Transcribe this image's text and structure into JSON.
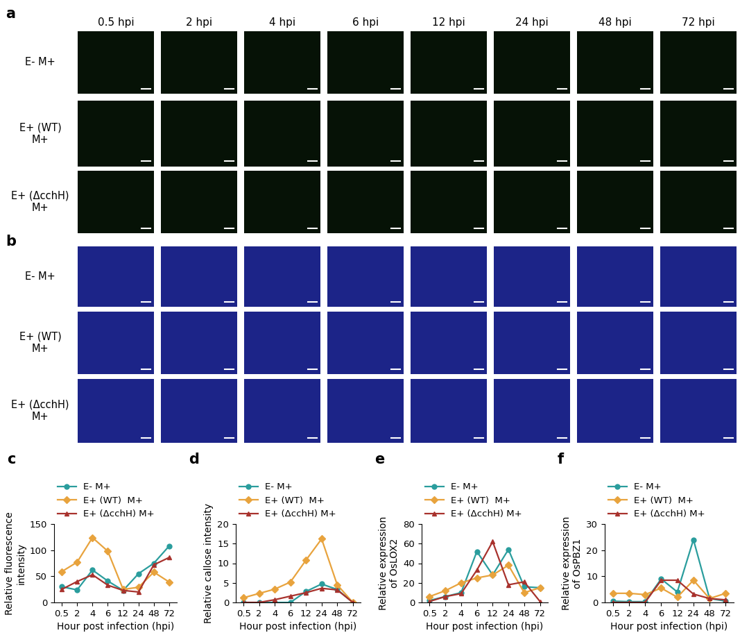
{
  "image_panels": [
    {
      "label": "a",
      "columns": [
        "0.5 hpi",
        "2 hpi",
        "4 hpi",
        "6 hpi",
        "12 hpi",
        "24 hpi",
        "48 hpi",
        "72 hpi"
      ],
      "rows": [
        "E- M+",
        "E+ (WT)\nM+",
        "E+ (ΔcchH)\nM+"
      ]
    },
    {
      "label": "b",
      "rows": [
        "E- M+",
        "E+ (WT)\nM+",
        "E+ (ΔcchH)\nM+"
      ]
    }
  ],
  "chart_data": [
    {
      "panel": "c",
      "type": "line",
      "x_label": "Hour post infection (hpi)",
      "y_label": "Relative fluorescence\nintensity",
      "categories": [
        "0.5",
        "2",
        "4",
        "6",
        "12",
        "24",
        "48",
        "72"
      ],
      "ylim": [
        0,
        150
      ],
      "yticks": [
        0,
        50,
        100,
        150
      ],
      "legend": "top",
      "series": [
        {
          "name": "E- M+",
          "color": "#2a9d9d",
          "marker": "circle",
          "values": [
            30,
            24,
            62,
            41,
            23,
            55,
            75,
            108
          ]
        },
        {
          "name": "E+ (WT)  M+",
          "color": "#e8a33d",
          "marker": "diamond",
          "values": [
            59,
            77,
            124,
            98,
            25,
            29,
            58,
            39
          ]
        },
        {
          "name": "E+ (ΔcchH) M+",
          "color": "#a8322d",
          "marker": "triangle",
          "values": [
            25,
            40,
            53,
            33,
            23,
            20,
            72,
            86
          ]
        }
      ]
    },
    {
      "panel": "d",
      "type": "line",
      "x_label": "Hour post infection (hpi)",
      "y_label": "Relative callose intensity",
      "categories": [
        "0.5",
        "2",
        "4",
        "6",
        "12",
        "24",
        "48",
        "72"
      ],
      "ylim": [
        0,
        20
      ],
      "yticks": [
        0,
        5,
        10,
        15,
        20
      ],
      "legend": "top",
      "series": [
        {
          "name": "E- M+",
          "color": "#2a9d9d",
          "marker": "circle",
          "values": [
            0,
            0,
            0,
            0,
            2.8,
            4.7,
            3.3,
            0
          ]
        },
        {
          "name": "E+ (WT)  M+",
          "color": "#e8a33d",
          "marker": "diamond",
          "values": [
            1.2,
            2.3,
            3.4,
            5.2,
            10.8,
            16.2,
            4.5,
            0
          ]
        },
        {
          "name": "E+ (ΔcchH) M+",
          "color": "#a8322d",
          "marker": "triangle",
          "values": [
            0,
            0,
            0.7,
            1.6,
            2.5,
            3.6,
            3.2,
            0
          ]
        }
      ]
    },
    {
      "panel": "e",
      "type": "line",
      "x_label": "Hour post infection (hpi)",
      "y_label": "Relative expression\nof OsLOX2",
      "categories": [
        "0.5",
        "2",
        "4",
        "6",
        "12",
        "24",
        "48",
        "72"
      ],
      "ylim": [
        0,
        80
      ],
      "yticks": [
        0,
        20,
        40,
        60,
        80
      ],
      "legend": "top",
      "series": [
        {
          "name": "E- M+",
          "color": "#2a9d9d",
          "marker": "circle",
          "values": [
            2,
            6,
            10,
            52,
            28,
            54,
            16,
            15
          ]
        },
        {
          "name": "E+ (WT)  M+",
          "color": "#e8a33d",
          "marker": "diamond",
          "values": [
            6,
            12,
            20,
            25,
            28,
            38,
            10,
            15
          ]
        },
        {
          "name": "E+ (ΔcchH) M+",
          "color": "#a8322d",
          "marker": "triangle",
          "values": [
            1,
            6,
            9,
            33,
            62,
            18,
            21,
            1
          ]
        }
      ]
    },
    {
      "panel": "f",
      "type": "line",
      "x_label": "Hour post infection (hpi)",
      "y_label": "Relative expression\nof OsPBZ1",
      "categories": [
        "0.5",
        "2",
        "4",
        "6",
        "12",
        "24",
        "48",
        "72"
      ],
      "ylim": [
        0,
        30
      ],
      "yticks": [
        0,
        10,
        20,
        30
      ],
      "legend": "top",
      "series": [
        {
          "name": "E- M+",
          "color": "#2a9d9d",
          "marker": "circle",
          "values": [
            0.5,
            0.3,
            0.3,
            9,
            4,
            24,
            1.5,
            0.5
          ]
        },
        {
          "name": "E+ (WT)  M+",
          "color": "#e8a33d",
          "marker": "diamond",
          "values": [
            3.5,
            3.5,
            3,
            5.5,
            2,
            8.5,
            1.5,
            3.5
          ]
        },
        {
          "name": "E+ (ΔcchH) M+",
          "color": "#a8322d",
          "marker": "triangle",
          "values": [
            0,
            0,
            0,
            8.5,
            8.5,
            3.2,
            1.5,
            1
          ]
        }
      ]
    }
  ]
}
